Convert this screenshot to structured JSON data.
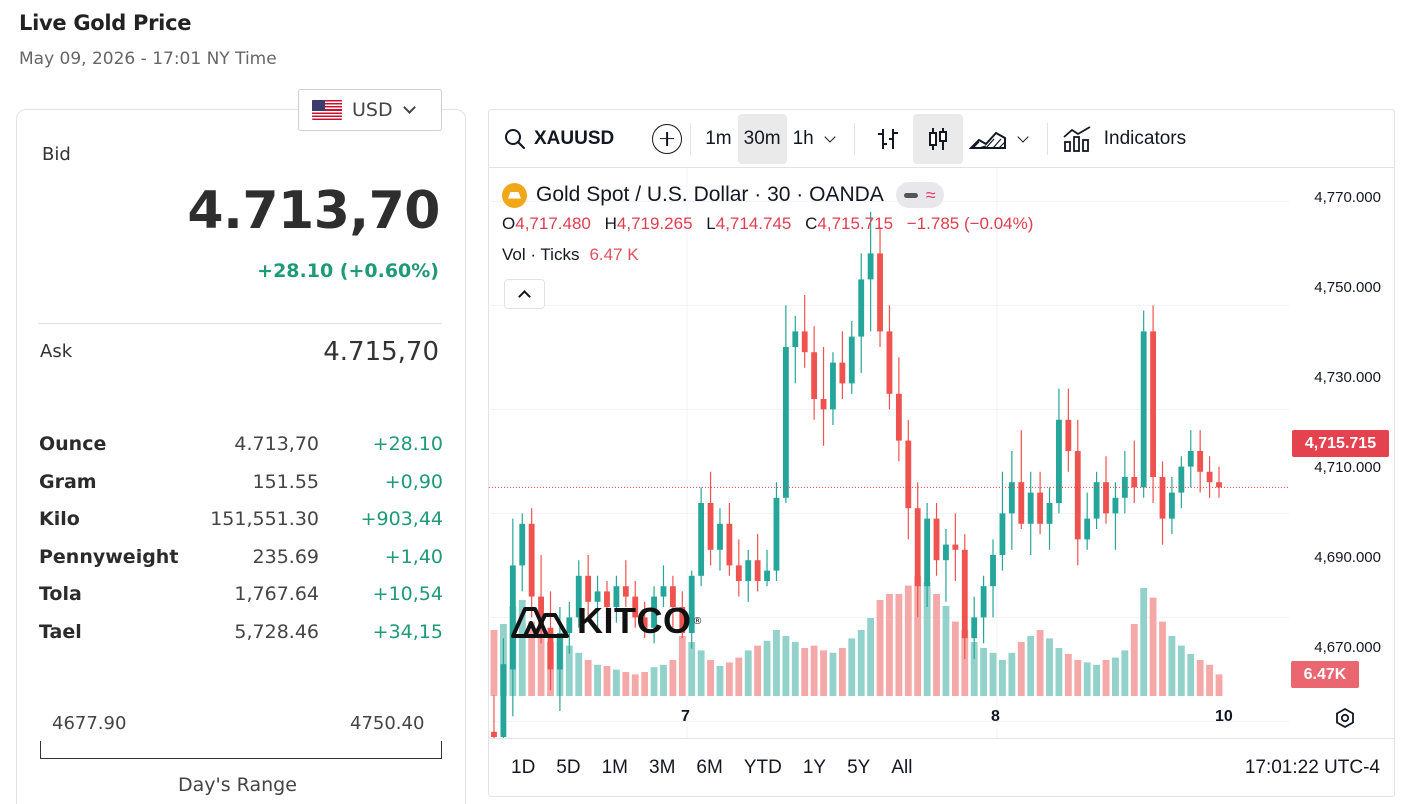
{
  "header": {
    "title": "Live Gold Price",
    "date": "May 09, 2026 - 17:01 NY Time"
  },
  "currency": {
    "label": "USD",
    "flag_icon": "us-flag-icon"
  },
  "quote": {
    "bid_label": "Bid",
    "bid": "4.713,70",
    "bid_change": "+28.10 (+0.60%)",
    "ask_label": "Ask",
    "ask": "4.715,70",
    "positive_color": "#1f9a78"
  },
  "units": [
    {
      "name": "Ounce",
      "price": "4.713,70",
      "change": "+28.10"
    },
    {
      "name": "Gram",
      "price": "151.55",
      "change": "+0,90"
    },
    {
      "name": "Kilo",
      "price": "151,551.30",
      "change": "+903,44"
    },
    {
      "name": "Pennyweight",
      "price": "235.69",
      "change": "+1,40"
    },
    {
      "name": "Tola",
      "price": "1,767.64",
      "change": "+10,54"
    },
    {
      "name": "Tael",
      "price": "5,728.46",
      "change": "+34,15"
    }
  ],
  "day_range": {
    "low": "4677.90",
    "high": "4750.40",
    "caption": "Day's Range"
  },
  "chart_widget": {
    "symbol": "XAUUSD",
    "intervals": [
      "1m",
      "30m",
      "1h"
    ],
    "active_interval": "30m",
    "indicators_label": "Indicators",
    "legend": {
      "title": "Gold Spot / U.S. Dollar · 30 · OANDA",
      "o_key": "O",
      "o": "4,717.480",
      "h_key": "H",
      "h": "4,719.265",
      "l_key": "L",
      "l": "4,714.745",
      "c_key": "C",
      "c": "4,715.715",
      "change": "−1.785 (−0.04%)",
      "vol_label": "Vol · Ticks",
      "vol_value": "6.47 K"
    },
    "watermark": "KITCO",
    "y_ticks": [
      "4,770.000",
      "4,750.000",
      "4,730.000",
      "4,710.000",
      "4,690.000",
      "4,670.000"
    ],
    "last_price_tag": "4,715.715",
    "volume_tag": "6.47K",
    "x_ticks": [
      "7",
      "8",
      "10"
    ],
    "ranges": [
      "1D",
      "5D",
      "1M",
      "3M",
      "6M",
      "YTD",
      "1Y",
      "5Y",
      "All"
    ],
    "clock": "17:01:22 UTC-4",
    "up_color": "#26a69a",
    "down_color": "#ef5350"
  },
  "chart_data": {
    "type": "candlestick",
    "symbol": "XAUUSD",
    "interval": "30m",
    "ylim": [
      4662,
      4772
    ],
    "x_labels": [
      "7",
      "8",
      "10"
    ],
    "candles": [
      [
        4668,
        4675,
        4665,
        4667,
        0.55
      ],
      [
        4667,
        4686,
        4665,
        4681,
        0.6
      ],
      [
        4680,
        4709,
        4671,
        4700,
        0.75
      ],
      [
        4700,
        4710,
        4695,
        4708,
        0.8
      ],
      [
        4708,
        4711,
        4690,
        4694,
        0.62
      ],
      [
        4694,
        4702,
        4685,
        4688,
        0.55
      ],
      [
        4688,
        4695,
        4676,
        4680,
        0.45
      ],
      [
        4680,
        4692,
        4672,
        4687,
        0.5
      ],
      [
        4687,
        4693,
        4683,
        4690,
        0.42
      ],
      [
        4690,
        4701,
        4688,
        4698,
        0.36
      ],
      [
        4698,
        4702,
        4690,
        4693,
        0.3
      ],
      [
        4693,
        4698,
        4687,
        4695,
        0.26
      ],
      [
        4695,
        4697,
        4689,
        4692,
        0.25
      ],
      [
        4692,
        4698,
        4689,
        4696,
        0.22
      ],
      [
        4696,
        4701,
        4692,
        4694,
        0.2
      ],
      [
        4694,
        4697,
        4688,
        4690,
        0.18
      ],
      [
        4690,
        4693,
        4686,
        4688,
        0.2
      ],
      [
        4688,
        4696,
        4685,
        4694,
        0.24
      ],
      [
        4694,
        4700,
        4692,
        4696,
        0.26
      ],
      [
        4696,
        4698,
        4688,
        4692,
        0.3
      ],
      [
        4692,
        4695,
        4686,
        4687,
        0.5
      ],
      [
        4687,
        4699,
        4684,
        4698,
        0.45
      ],
      [
        4698,
        4715,
        4696,
        4712,
        0.38
      ],
      [
        4712,
        4718,
        4700,
        4703,
        0.3
      ],
      [
        4703,
        4711,
        4699,
        4708,
        0.25
      ],
      [
        4708,
        4712,
        4698,
        4700,
        0.28
      ],
      [
        4700,
        4705,
        4694,
        4697,
        0.32
      ],
      [
        4697,
        4703,
        4693,
        4701,
        0.38
      ],
      [
        4701,
        4706,
        4695,
        4697,
        0.42
      ],
      [
        4697,
        4703,
        4696,
        4699,
        0.46
      ],
      [
        4699,
        4716,
        4697,
        4713,
        0.55
      ],
      [
        4713,
        4750,
        4712,
        4742,
        0.5
      ],
      [
        4742,
        4748,
        4735,
        4745,
        0.45
      ],
      [
        4745,
        4752,
        4738,
        4741,
        0.4
      ],
      [
        4741,
        4746,
        4728,
        4732,
        0.42
      ],
      [
        4732,
        4742,
        4723,
        4730,
        0.38
      ],
      [
        4730,
        4741,
        4727,
        4739,
        0.36
      ],
      [
        4739,
        4745,
        4732,
        4735,
        0.4
      ],
      [
        4735,
        4747,
        4733,
        4744,
        0.48
      ],
      [
        4744,
        4760,
        4737,
        4755,
        0.55
      ],
      [
        4755,
        4768,
        4745,
        4760,
        0.65
      ],
      [
        4760,
        4765,
        4742,
        4745,
        0.8
      ],
      [
        4745,
        4750,
        4730,
        4733,
        0.85
      ],
      [
        4733,
        4740,
        4720,
        4724,
        0.85
      ],
      [
        4724,
        4728,
        4705,
        4711,
        0.92
      ],
      [
        4711,
        4716,
        4690,
        4696,
        1.0
      ],
      [
        4696,
        4712,
        4692,
        4709,
        0.95
      ],
      [
        4709,
        4712,
        4698,
        4701,
        0.85
      ],
      [
        4701,
        4707,
        4693,
        4704,
        0.75
      ],
      [
        4704,
        4710,
        4697,
        4703,
        0.62
      ],
      [
        4703,
        4706,
        4682,
        4686,
        0.55
      ],
      [
        4686,
        4694,
        4682,
        4690,
        0.45
      ],
      [
        4690,
        4698,
        4685,
        4696,
        0.4
      ],
      [
        4696,
        4705,
        4690,
        4702,
        0.36
      ],
      [
        4702,
        4718,
        4699,
        4710,
        0.3
      ],
      [
        4710,
        4722,
        4703,
        4716,
        0.36
      ],
      [
        4716,
        4726,
        4707,
        4708,
        0.45
      ],
      [
        4708,
        4718,
        4702,
        4714,
        0.5
      ],
      [
        4714,
        4718,
        4706,
        4708,
        0.55
      ],
      [
        4708,
        4715,
        4703,
        4712,
        0.48
      ],
      [
        4712,
        4734,
        4710,
        4728,
        0.4
      ],
      [
        4728,
        4734,
        4718,
        4722,
        0.35
      ],
      [
        4722,
        4728,
        4700,
        4705,
        0.3
      ],
      [
        4705,
        4714,
        4703,
        4709,
        0.28
      ],
      [
        4709,
        4718,
        4707,
        4716,
        0.26
      ],
      [
        4716,
        4721,
        4708,
        4710,
        0.3
      ],
      [
        4710,
        4716,
        4703,
        4713,
        0.32
      ],
      [
        4713,
        4722,
        4710,
        4717,
        0.38
      ],
      [
        4717,
        4724,
        4712,
        4715,
        0.6
      ],
      [
        4715,
        4749,
        4713,
        4745,
        0.9
      ],
      [
        4745,
        4750,
        4712,
        4717,
        0.82
      ],
      [
        4717,
        4720,
        4704,
        4709,
        0.62
      ],
      [
        4709,
        4717,
        4706,
        4714,
        0.5
      ],
      [
        4714,
        4721,
        4711,
        4719,
        0.42
      ],
      [
        4719,
        4726,
        4715,
        4722,
        0.35
      ],
      [
        4722,
        4726,
        4714,
        4718,
        0.3
      ],
      [
        4718,
        4721,
        4713,
        4716,
        0.26
      ],
      [
        4716,
        4719,
        4713,
        4715,
        0.18
      ]
    ]
  }
}
